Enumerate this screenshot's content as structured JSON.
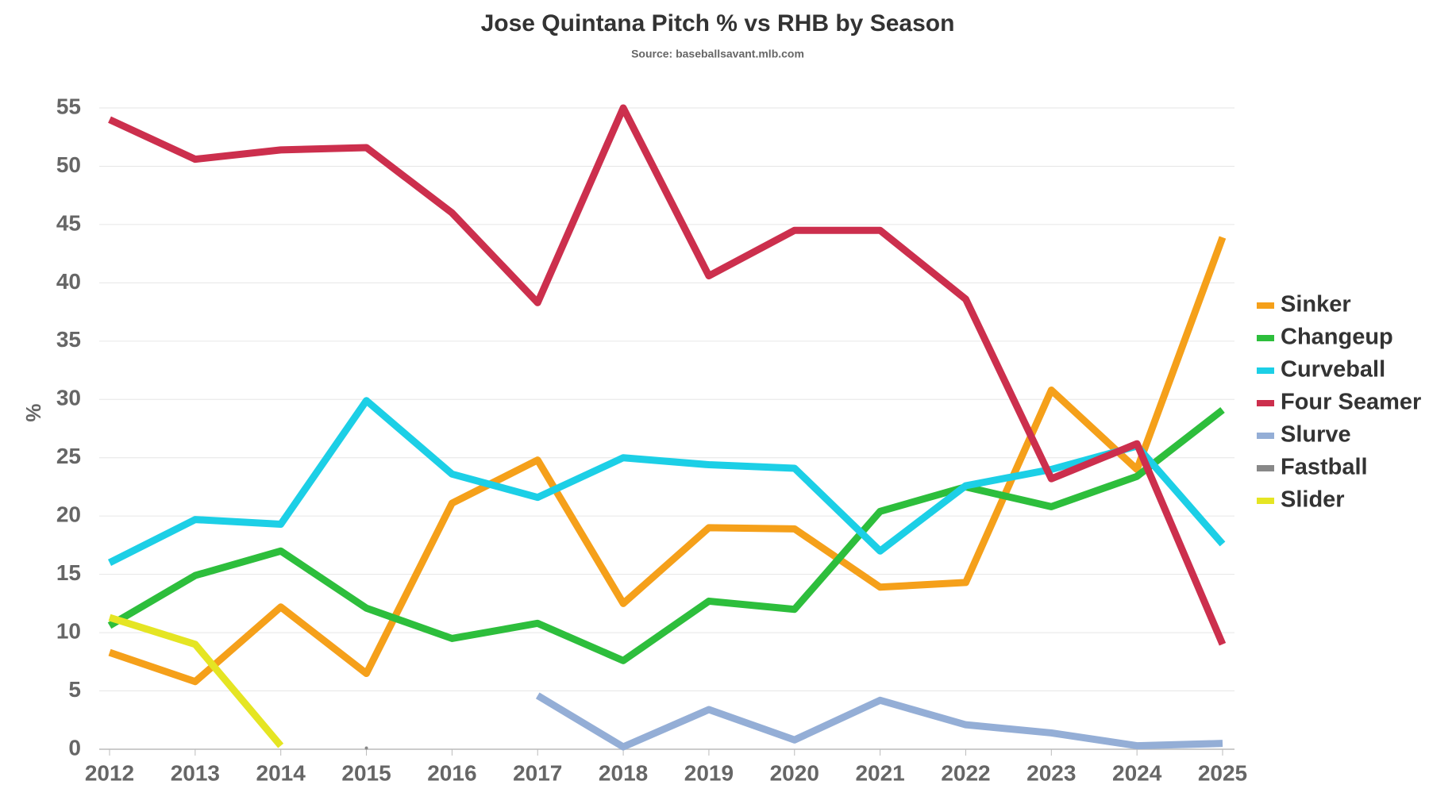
{
  "chart_data": {
    "type": "line",
    "title": "Jose Quintana Pitch % vs RHB by Season",
    "subtitle": "Source: baseballsavant.mlb.com",
    "y_label": "%",
    "categories": [
      "2012",
      "2013",
      "2014",
      "2015",
      "2016",
      "2017",
      "2018",
      "2019",
      "2020",
      "2021",
      "2022",
      "2023",
      "2024",
      "2025"
    ],
    "series": [
      {
        "name": "Sinker",
        "color": "#f5a01a",
        "values": [
          8.3,
          5.8,
          12.2,
          6.5,
          21.1,
          24.8,
          12.5,
          19.0,
          18.9,
          13.9,
          14.3,
          30.8,
          24.0,
          43.9
        ]
      },
      {
        "name": "Changeup",
        "color": "#2dbe3c",
        "values": [
          10.6,
          14.9,
          17.0,
          12.1,
          9.5,
          10.8,
          7.6,
          12.7,
          12.0,
          20.4,
          22.5,
          20.8,
          23.4,
          29.1
        ]
      },
      {
        "name": "Curveball",
        "color": "#1ccfe6",
        "values": [
          16.0,
          19.7,
          19.3,
          29.9,
          23.6,
          21.6,
          25.0,
          24.4,
          24.1,
          17.0,
          22.6,
          24.0,
          26.0,
          17.6
        ]
      },
      {
        "name": "Four Seamer",
        "color": "#cc2f4d",
        "values": [
          54.0,
          50.6,
          51.4,
          51.6,
          46.0,
          38.3,
          55.0,
          40.6,
          44.5,
          44.5,
          38.6,
          23.2,
          26.2,
          9.0
        ]
      },
      {
        "name": "Slurve",
        "color": "#94aed6",
        "values": [
          null,
          null,
          null,
          null,
          null,
          4.6,
          0.2,
          3.4,
          0.8,
          4.2,
          2.1,
          1.4,
          0.3,
          0.5
        ]
      },
      {
        "name": "Fastball",
        "color": "#888888",
        "values": [
          null,
          null,
          null,
          0.1,
          null,
          null,
          null,
          null,
          null,
          null,
          null,
          null,
          null,
          null
        ]
      },
      {
        "name": "Slider",
        "color": "#e5e523",
        "values": [
          11.3,
          9.0,
          0.3,
          null,
          null,
          null,
          null,
          null,
          null,
          null,
          null,
          null,
          null,
          null
        ]
      }
    ],
    "ylim": [
      0,
      55
    ],
    "yticks": [
      0,
      5,
      10,
      15,
      20,
      25,
      30,
      35,
      40,
      45,
      50,
      55
    ],
    "grid": true,
    "legend": "right"
  }
}
